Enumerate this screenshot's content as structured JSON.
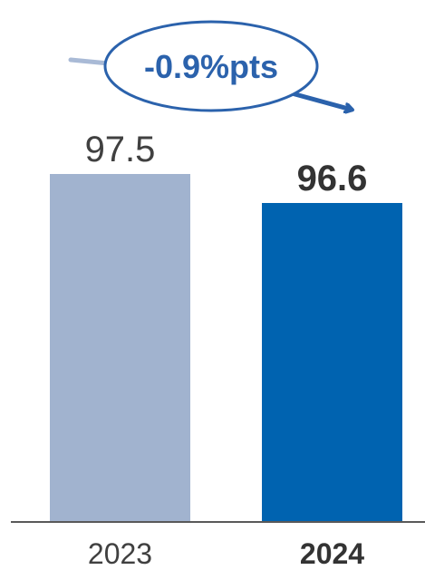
{
  "chart_data": {
    "type": "bar",
    "categories": [
      "2023",
      "2024"
    ],
    "values": [
      97.5,
      96.6
    ],
    "value_labels": [
      "97.5",
      "96.6"
    ],
    "emphasis": [
      false,
      true
    ],
    "bar_colors": [
      "#a1b3cf",
      "#0063b0"
    ],
    "annotation": "-0.9%pts",
    "annotation_color": "#2b62ac",
    "axis_color": "#595959",
    "ylim": [
      0,
      97.5
    ],
    "grid": false,
    "title": "",
    "xlabel": "",
    "ylabel": ""
  }
}
